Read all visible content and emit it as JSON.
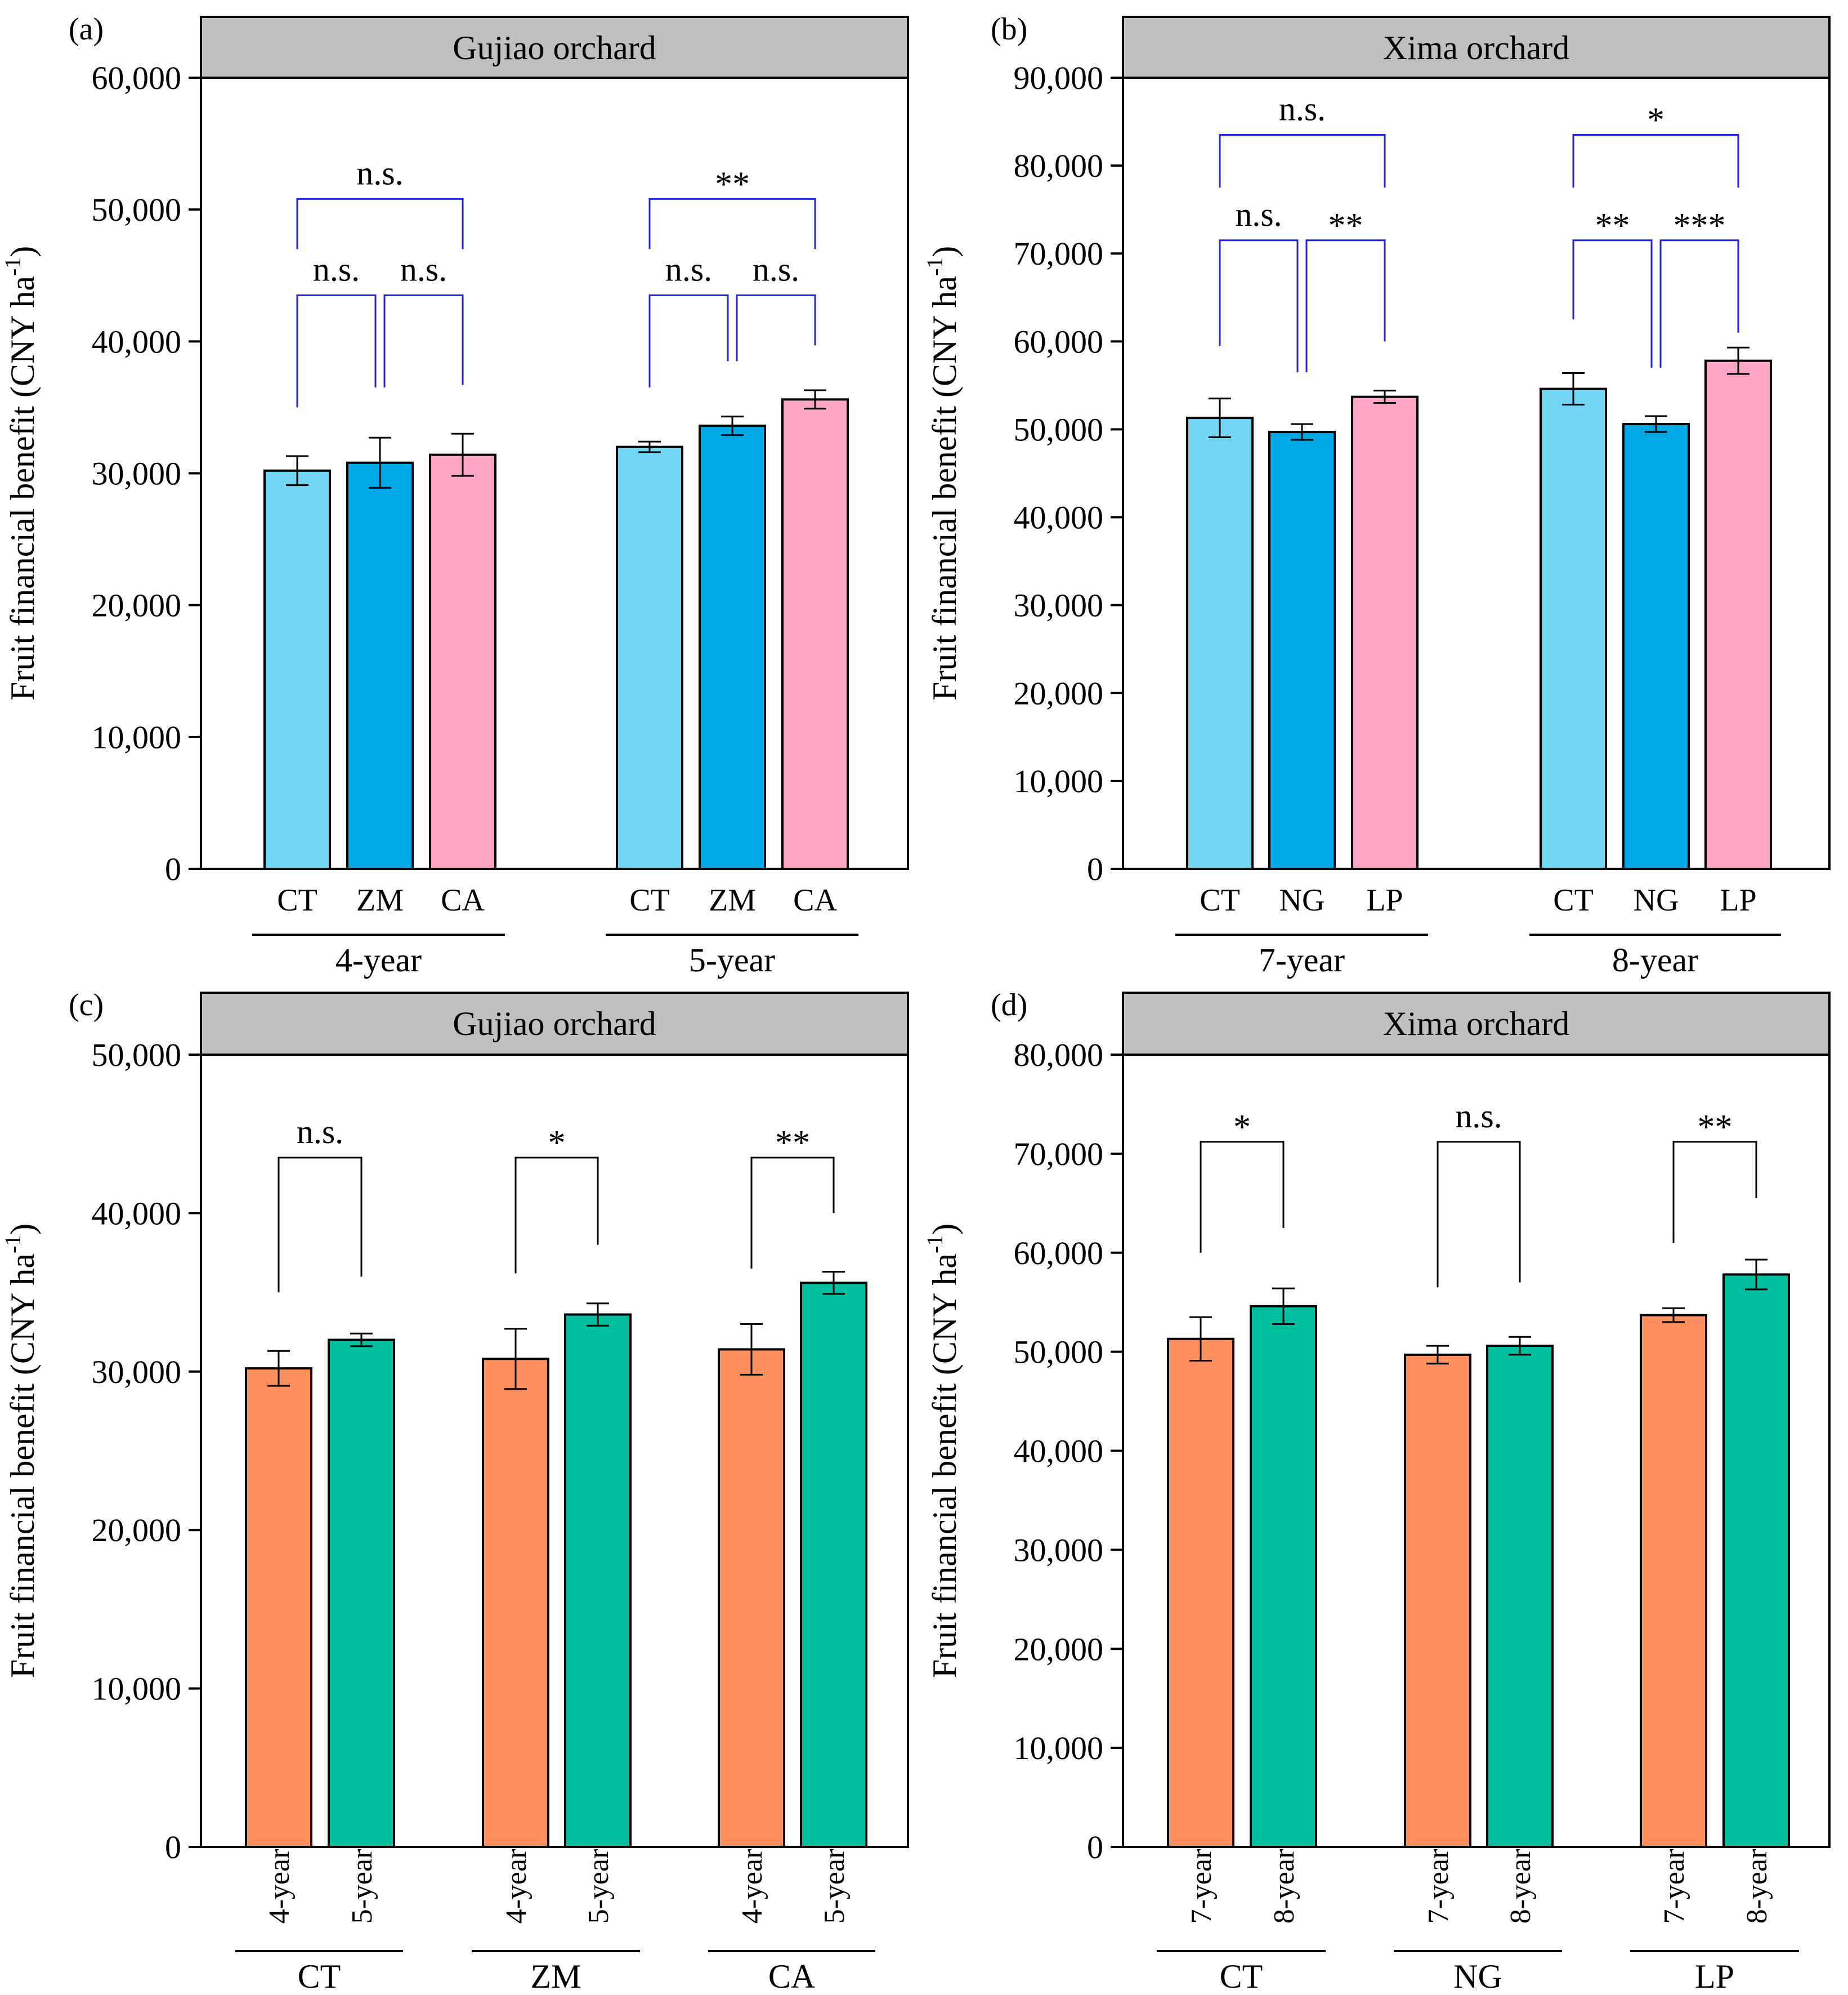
{
  "figure": {
    "ylabel_main": "Fruit financial benefit (CNY ha",
    "ylabel_sup": "-1",
    "ylabel_close": ")"
  },
  "chart_data": [
    {
      "type": "bar",
      "panel": "(a)",
      "title": "Gujiao orchard",
      "ylim": [
        0,
        60000
      ],
      "yticks": [
        0,
        10000,
        20000,
        30000,
        40000,
        50000,
        60000
      ],
      "ytick_labels": [
        "0",
        "10,000",
        "20,000",
        "30,000",
        "40,000",
        "50,000",
        "60,000"
      ],
      "groups": [
        {
          "label": "4-year",
          "bars": [
            {
              "category": "CT",
              "value": 30200,
              "error": 1100,
              "color": "#74d6f5"
            },
            {
              "category": "ZM",
              "value": 30800,
              "error": 1900,
              "color": "#00a9e6"
            },
            {
              "category": "CA",
              "value": 31400,
              "error": 1600,
              "color": "#ffa6c6"
            }
          ],
          "comparisons": [
            {
              "from": 0,
              "to": 1,
              "label": "n.s.",
              "y": 43500,
              "left_end": 35000,
              "right_end": 36500
            },
            {
              "from": 1,
              "to": 2,
              "label": "n.s.",
              "y": 43500,
              "left_end": 36500,
              "right_end": 36700
            },
            {
              "from": 0,
              "to": 2,
              "label": "n.s.",
              "y": 50800,
              "left_end": 47000,
              "right_end": 47000
            }
          ]
        },
        {
          "label": "5-year",
          "bars": [
            {
              "category": "CT",
              "value": 32000,
              "error": 400,
              "color": "#74d6f5"
            },
            {
              "category": "ZM",
              "value": 33600,
              "error": 700,
              "color": "#00a9e6"
            },
            {
              "category": "CA",
              "value": 35600,
              "error": 700,
              "color": "#ffa6c6"
            }
          ],
          "comparisons": [
            {
              "from": 0,
              "to": 1,
              "label": "n.s.",
              "y": 43500,
              "left_end": 36500,
              "right_end": 38500
            },
            {
              "from": 1,
              "to": 2,
              "label": "n.s.",
              "y": 43500,
              "left_end": 38500,
              "right_end": 39700
            },
            {
              "from": 0,
              "to": 2,
              "label": "**",
              "y": 50800,
              "left_end": 47000,
              "right_end": 47000
            }
          ]
        }
      ],
      "bracket_color": "#1f24e6",
      "tick_orientation": "horizontal"
    },
    {
      "type": "bar",
      "panel": "(b)",
      "title": "Xima orchard",
      "ylim": [
        0,
        90000
      ],
      "yticks": [
        0,
        10000,
        20000,
        30000,
        40000,
        50000,
        60000,
        70000,
        80000,
        90000
      ],
      "ytick_labels": [
        "0",
        "10,000",
        "20,000",
        "30,000",
        "40,000",
        "50,000",
        "60,000",
        "70,000",
        "80,000",
        "90,000"
      ],
      "groups": [
        {
          "label": "7-year",
          "bars": [
            {
              "category": "CT",
              "value": 51300,
              "error": 2200,
              "color": "#74d6f5"
            },
            {
              "category": "NG",
              "value": 49700,
              "error": 900,
              "color": "#00a9e6"
            },
            {
              "category": "LP",
              "value": 53700,
              "error": 700,
              "color": "#ffa6c6"
            }
          ],
          "comparisons": [
            {
              "from": 0,
              "to": 1,
              "label": "n.s.",
              "y": 71500,
              "left_end": 59500,
              "right_end": 56500
            },
            {
              "from": 1,
              "to": 2,
              "label": "**",
              "y": 71500,
              "left_end": 56500,
              "right_end": 60000
            },
            {
              "from": 0,
              "to": 2,
              "label": "n.s.",
              "y": 83500,
              "left_end": 77500,
              "right_end": 77500
            }
          ]
        },
        {
          "label": "8-year",
          "bars": [
            {
              "category": "CT",
              "value": 54600,
              "error": 1800,
              "color": "#74d6f5"
            },
            {
              "category": "NG",
              "value": 50600,
              "error": 900,
              "color": "#00a9e6"
            },
            {
              "category": "LP",
              "value": 57800,
              "error": 1500,
              "color": "#ffa6c6"
            }
          ],
          "comparisons": [
            {
              "from": 0,
              "to": 1,
              "label": "**",
              "y": 71500,
              "left_end": 62500,
              "right_end": 57000
            },
            {
              "from": 1,
              "to": 2,
              "label": "***",
              "y": 71500,
              "left_end": 57000,
              "right_end": 61000
            },
            {
              "from": 0,
              "to": 2,
              "label": "*",
              "y": 83500,
              "left_end": 77500,
              "right_end": 77500
            }
          ]
        }
      ],
      "bracket_color": "#1f24e6",
      "tick_orientation": "horizontal"
    },
    {
      "type": "bar",
      "panel": "(c)",
      "title": "Gujiao orchard",
      "ylim": [
        0,
        50000
      ],
      "yticks": [
        0,
        10000,
        20000,
        30000,
        40000,
        50000
      ],
      "ytick_labels": [
        "0",
        "10,000",
        "20,000",
        "30,000",
        "40,000",
        "50,000"
      ],
      "groups": [
        {
          "label": "CT",
          "bars": [
            {
              "category": "4-year",
              "value": 30200,
              "error": 1100,
              "color": "#ff8f5e"
            },
            {
              "category": "5-year",
              "value": 32000,
              "error": 400,
              "color": "#00bf9f"
            }
          ],
          "comparisons": [
            {
              "from": 0,
              "to": 1,
              "label": "n.s.",
              "y": 43500,
              "left_end": 35000,
              "right_end": 36000
            }
          ]
        },
        {
          "label": "ZM",
          "bars": [
            {
              "category": "4-year",
              "value": 30800,
              "error": 1900,
              "color": "#ff8f5e"
            },
            {
              "category": "5-year",
              "value": 33600,
              "error": 700,
              "color": "#00bf9f"
            }
          ],
          "comparisons": [
            {
              "from": 0,
              "to": 1,
              "label": "*",
              "y": 43500,
              "left_end": 36200,
              "right_end": 38000
            }
          ]
        },
        {
          "label": "CA",
          "bars": [
            {
              "category": "4-year",
              "value": 31400,
              "error": 1600,
              "color": "#ff8f5e"
            },
            {
              "category": "5-year",
              "value": 35600,
              "error": 700,
              "color": "#00bf9f"
            }
          ],
          "comparisons": [
            {
              "from": 0,
              "to": 1,
              "label": "**",
              "y": 43500,
              "left_end": 36500,
              "right_end": 40000
            }
          ]
        }
      ],
      "bracket_color": "#000000",
      "tick_orientation": "vertical"
    },
    {
      "type": "bar",
      "panel": "(d)",
      "title": "Xima orchard",
      "ylim": [
        0,
        80000
      ],
      "yticks": [
        0,
        10000,
        20000,
        30000,
        40000,
        50000,
        60000,
        70000,
        80000
      ],
      "ytick_labels": [
        "0",
        "10,000",
        "20,000",
        "30,000",
        "40,000",
        "50,000",
        "60,000",
        "70,000",
        "80,000"
      ],
      "groups": [
        {
          "label": "CT",
          "bars": [
            {
              "category": "7-year",
              "value": 51300,
              "error": 2200,
              "color": "#ff8f5e"
            },
            {
              "category": "8-year",
              "value": 54600,
              "error": 1800,
              "color": "#00bf9f"
            }
          ],
          "comparisons": [
            {
              "from": 0,
              "to": 1,
              "label": "*",
              "y": 71200,
              "left_end": 60000,
              "right_end": 62500
            }
          ]
        },
        {
          "label": "NG",
          "bars": [
            {
              "category": "7-year",
              "value": 49700,
              "error": 900,
              "color": "#ff8f5e"
            },
            {
              "category": "8-year",
              "value": 50600,
              "error": 900,
              "color": "#00bf9f"
            }
          ],
          "comparisons": [
            {
              "from": 0,
              "to": 1,
              "label": "n.s.",
              "y": 71200,
              "left_end": 56500,
              "right_end": 57000
            }
          ]
        },
        {
          "label": "LP",
          "bars": [
            {
              "category": "7-year",
              "value": 53700,
              "error": 700,
              "color": "#ff8f5e"
            },
            {
              "category": "8-year",
              "value": 57800,
              "error": 1500,
              "color": "#00bf9f"
            }
          ],
          "comparisons": [
            {
              "from": 0,
              "to": 1,
              "label": "**",
              "y": 71200,
              "left_end": 61000,
              "right_end": 65500
            }
          ]
        }
      ],
      "bracket_color": "#000000",
      "tick_orientation": "vertical"
    }
  ]
}
